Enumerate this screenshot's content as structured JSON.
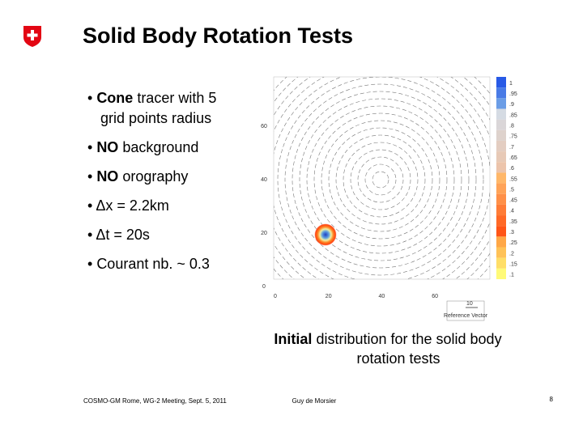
{
  "header": {
    "title": "Solid Body Rotation Tests"
  },
  "bullets": [
    {
      "bold": "Cone",
      "lines": [
        " tracer with 5",
        "grid points radius"
      ]
    },
    {
      "bold": "NO",
      "lines": [
        " background"
      ]
    },
    {
      "bold": "NO",
      "lines": [
        " orography"
      ]
    },
    {
      "bold": "",
      "lines": [
        "Δx = 2.2km"
      ]
    },
    {
      "bold": "",
      "lines": [
        "Δt = 20s"
      ]
    },
    {
      "bold": "",
      "lines": [
        "Courant nb. ~ 0.3"
      ]
    }
  ],
  "figure": {
    "y_ticks": [
      "60",
      "40",
      "20",
      "0"
    ],
    "x_ticks": [
      "0",
      "20",
      "40",
      "60"
    ],
    "colorbar_labels": [
      "1",
      ".95",
      ".9",
      ".85",
      ".8",
      ".75",
      ".7",
      ".65",
      ".6",
      ".55",
      ".5",
      ".45",
      ".4",
      ".35",
      ".3",
      ".25",
      ".2",
      ".15",
      ".1"
    ],
    "reference_value": "10",
    "reference_label": "Reference Vector"
  },
  "caption": {
    "bold": "Initial",
    "line1": " distribution for the solid body",
    "line2": "rotation tests"
  },
  "footer": {
    "left": "COSMO-GM Rome, WG-2 Meeting, Sept. 5, 2011",
    "center": "Guy de Morsier",
    "page": "8"
  }
}
